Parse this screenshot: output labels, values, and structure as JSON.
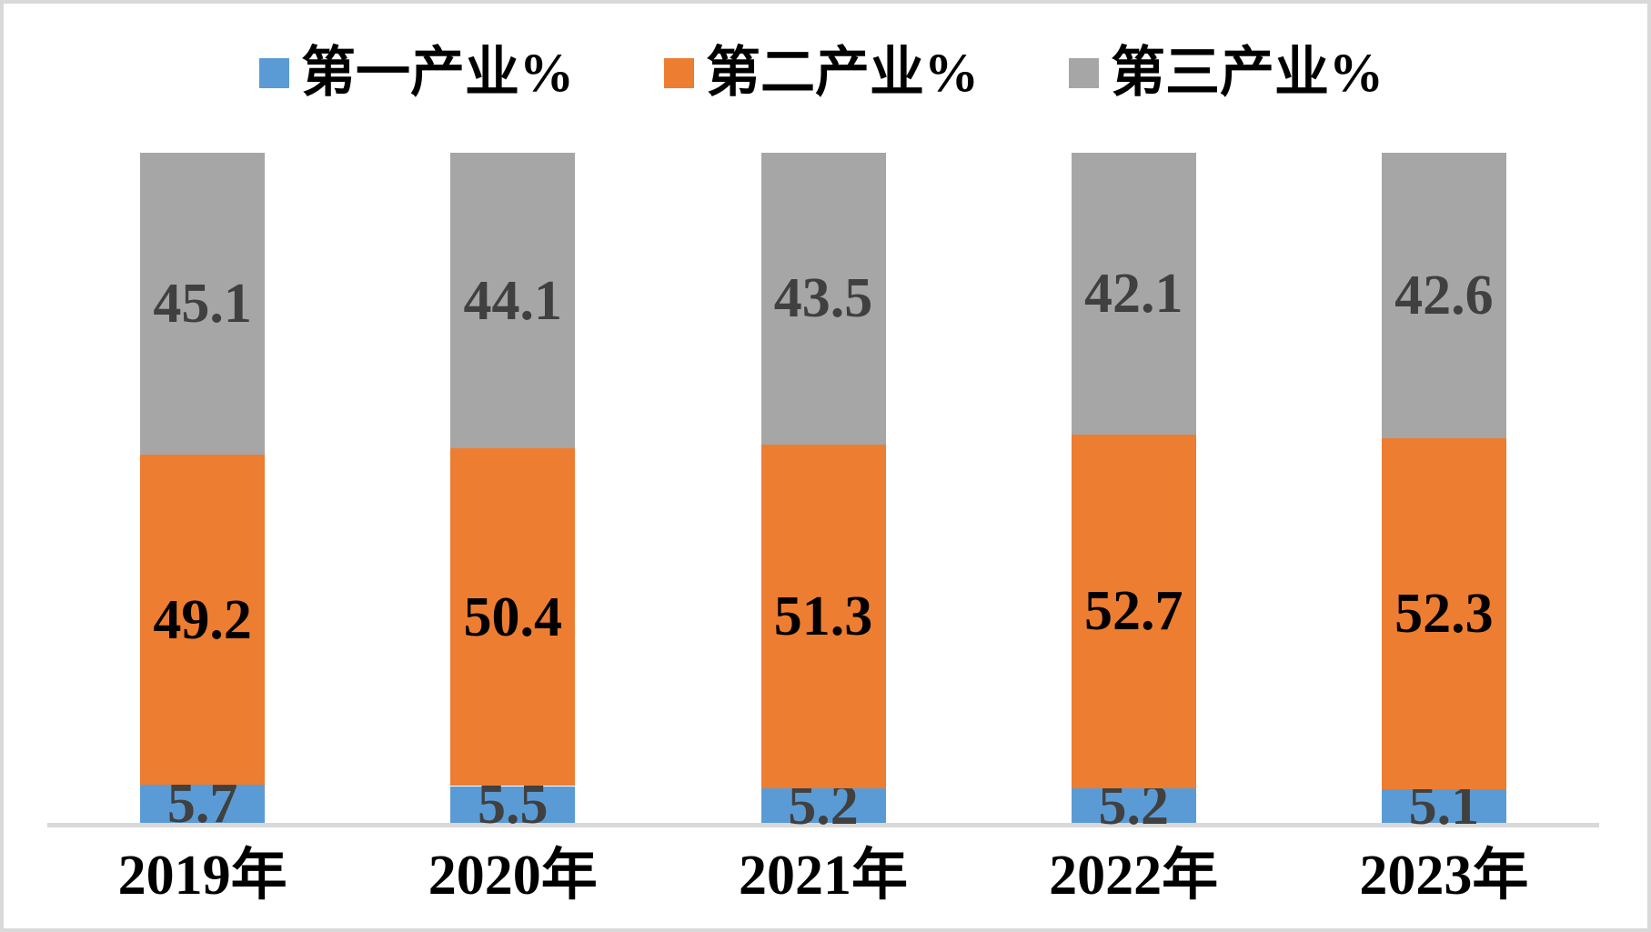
{
  "frame": {
    "border_color": "#D9D9D9",
    "background": "#FFFFFF"
  },
  "axis": {
    "baseline_color": "#D9D9D9"
  },
  "chart_data": {
    "type": "bar",
    "stacked": true,
    "title": "",
    "xlabel": "",
    "ylabel": "",
    "ylim": [
      0,
      100
    ],
    "grid": false,
    "legend_position": "top",
    "categories": [
      "2019年",
      "2020年",
      "2021年",
      "2022年",
      "2023年"
    ],
    "series": [
      {
        "name": "第一产业%",
        "color": "#5B9BD5",
        "label_color": "#404040",
        "values": [
          5.7,
          5.5,
          5.2,
          5.2,
          5.1
        ]
      },
      {
        "name": "第二产业%",
        "color": "#ED7D31",
        "label_color": "#000000",
        "values": [
          49.2,
          50.4,
          51.3,
          52.7,
          52.3
        ]
      },
      {
        "name": "第三产业%",
        "color": "#A6A6A6",
        "label_color": "#404040",
        "values": [
          45.1,
          44.1,
          43.5,
          42.1,
          42.6
        ]
      }
    ]
  }
}
